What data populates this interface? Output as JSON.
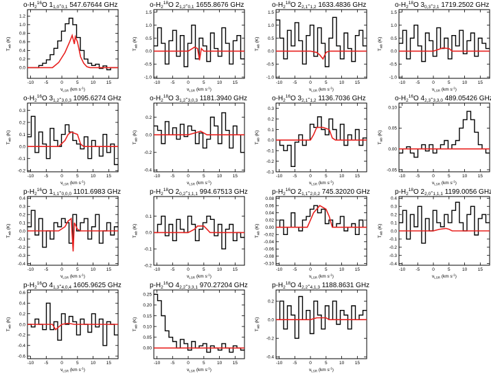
{
  "figure": {
    "background": "#ffffff",
    "frame_color": "#000000",
    "observed_color": "#000000",
    "model_color": "#e8201e"
  },
  "chart_data": [
    {
      "type": "line",
      "species": "o-H",
      "iso": "16",
      "spec": "O 1",
      "up": "1,0",
      "down": "0,1",
      "freq": "547.67644 GHz",
      "xlim": [
        -11,
        18
      ],
      "ylim": [
        -0.25,
        1.35
      ],
      "yticks": [
        0.0,
        0.2,
        0.4,
        0.6,
        0.8,
        1.0,
        1.2
      ],
      "yfmt": 1,
      "obs": [
        0,
        0,
        0,
        0.05,
        0.1,
        0.18,
        0.3,
        0.45,
        0.62,
        0.85,
        1.02,
        1.15,
        1.0,
        0.7,
        0.4,
        0.2,
        0.1,
        0.05,
        0.08,
        -0.02,
        0.04,
        -0.05,
        0,
        0
      ],
      "model": [
        [
          -11,
          0
        ],
        [
          -3,
          0
        ],
        [
          -1,
          0.12
        ],
        [
          1,
          0.35
        ],
        [
          2.5,
          0.6
        ],
        [
          3.3,
          0.75
        ],
        [
          4,
          0.55
        ],
        [
          4.3,
          0.72
        ],
        [
          5,
          0.6
        ],
        [
          6,
          0.25
        ],
        [
          7,
          0.1
        ],
        [
          8,
          0.02
        ],
        [
          9,
          0
        ],
        [
          18,
          0
        ]
      ],
      "xlabel": "v",
      "xsub": "LSR",
      "xunit": " (km s",
      "ylabel": "T",
      "ysub": "mb",
      "yunit": " (K)"
    },
    {
      "type": "line",
      "species": "o-H",
      "iso": "18",
      "spec": "O 2",
      "up": "1,2",
      "down": "0,1",
      "freq": "1655.8676 GHz",
      "xlim": [
        -11,
        18
      ],
      "ylim": [
        -1.05,
        1.6
      ],
      "yticks": [
        -1.0,
        -0.5,
        0.0,
        0.5,
        1.0,
        1.5
      ],
      "yfmt": 1,
      "obs": [
        0.2,
        0.9,
        0.3,
        -0.5,
        0.4,
        0.8,
        -0.2,
        0.6,
        -0.6,
        0.3,
        1.0,
        -0.3,
        0.5,
        0.2,
        -0.4,
        0.7,
        0.1,
        -0.2,
        0.9,
        0.3,
        -0.5,
        0.4,
        0.6,
        -0.3
      ],
      "model": [
        [
          -11,
          0
        ],
        [
          0,
          0
        ],
        [
          2,
          0.15
        ],
        [
          3,
          0.1
        ],
        [
          3.6,
          -0.35
        ],
        [
          4.2,
          0.1
        ],
        [
          5,
          0
        ],
        [
          18,
          0
        ]
      ],
      "xlabel": "v",
      "xsub": "LSR",
      "xunit": " (km s",
      "ylabel": "T",
      "ysub": "mb",
      "yunit": " (K)"
    },
    {
      "type": "line",
      "species": "o-H",
      "iso": "18",
      "spec": "O 2",
      "up": "2,1",
      "down": "1,2",
      "freq": "1633.4836 GHz",
      "xlim": [
        -11,
        18
      ],
      "ylim": [
        -1.05,
        1.6
      ],
      "yticks": [
        -1.0,
        -0.5,
        0.0,
        0.5,
        1.0,
        1.5
      ],
      "yfmt": 1,
      "obs": [
        1.2,
        0.5,
        -0.3,
        0.8,
        0.2,
        1.1,
        0.4,
        -0.5,
        0.6,
        1.0,
        -0.2,
        0.9,
        0.3,
        -0.6,
        0.5,
        1.3,
        0.2,
        -0.3,
        0.7,
        0.1,
        -0.4,
        0.6,
        0.8,
        0.2
      ],
      "model": [
        [
          -11,
          0
        ],
        [
          0,
          0
        ],
        [
          2,
          -0.05
        ],
        [
          3,
          -0.15
        ],
        [
          4,
          -0.3
        ],
        [
          5,
          -0.05
        ],
        [
          6,
          0
        ],
        [
          18,
          0
        ]
      ],
      "xlabel": "v",
      "xsub": "LSR",
      "xunit": " (km s",
      "ylabel": "T",
      "ysub": "mb",
      "yunit": " (K)"
    },
    {
      "type": "line",
      "species": "o-H",
      "iso": "18",
      "spec": "O 3",
      "up": "0,3",
      "down": "2,1",
      "freq": "1719.2502 GHz",
      "xlim": [
        -11,
        18
      ],
      "ylim": [
        -1.05,
        1.6
      ],
      "yticks": [
        -1.0,
        -0.5,
        0.0,
        0.5,
        1.0,
        1.5
      ],
      "yfmt": 1,
      "obs": [
        0.3,
        0.8,
        -0.3,
        0.5,
        1.0,
        0.2,
        -0.4,
        0.7,
        0.4,
        -0.2,
        0.9,
        0.1,
        0.5,
        -0.3,
        0.6,
        0.2,
        0.8,
        -0.1,
        0.4,
        0.7,
        -0.2,
        0.5,
        0.3,
        0.1
      ],
      "model": [
        [
          -11,
          0
        ],
        [
          0,
          0
        ],
        [
          2,
          0.08
        ],
        [
          3,
          0.12
        ],
        [
          5,
          0.1
        ],
        [
          6,
          0
        ],
        [
          18,
          0
        ]
      ],
      "xlabel": "v",
      "xsub": "LSR",
      "xunit": " (km s",
      "ylabel": "T",
      "ysub": "mb",
      "yunit": " (K)"
    },
    {
      "type": "line",
      "species": "o-H",
      "iso": "16",
      "spec": "O 3",
      "up": "1,2",
      "down": "3,0,3",
      "freq": "1095.6274 GHz",
      "xlim": [
        -11,
        18
      ],
      "ylim": [
        -0.21,
        0.36
      ],
      "yticks": [
        -0.2,
        -0.1,
        0.0,
        0.1,
        0.2,
        0.3
      ],
      "yfmt": 1,
      "obs": [
        0.08,
        0.25,
        -0.05,
        0.12,
        0.02,
        -0.1,
        0.15,
        0.05,
        0.0,
        0.1,
        0.18,
        0.12,
        0.05,
        0.02,
        -0.02,
        0.08,
        -0.1,
        0.05,
        0.0,
        -0.08,
        0.1,
        -0.05,
        0.02,
        -0.15
      ],
      "model": [
        [
          -11,
          0
        ],
        [
          -1,
          0
        ],
        [
          1,
          0.05
        ],
        [
          2,
          0.1
        ],
        [
          3,
          0.12
        ],
        [
          5,
          0.1
        ],
        [
          6,
          0.02
        ],
        [
          7,
          0
        ],
        [
          18,
          0
        ]
      ],
      "xlabel": "v",
      "xsub": "LSR",
      "xunit": " (km s",
      "ylabel": "T",
      "ysub": "mb",
      "yunit": " (K)"
    },
    {
      "type": "line",
      "species": "o-H",
      "iso": "18",
      "spec": "O 3",
      "up": "1,2",
      "down": "3,0,3",
      "freq": "1181.3940 GHz",
      "xlim": [
        -11,
        18
      ],
      "ylim": [
        -0.42,
        0.36
      ],
      "yticks": [
        -0.4,
        -0.2,
        0.0,
        0.2
      ],
      "yfmt": 1,
      "obs": [
        0.1,
        0.05,
        -0.1,
        0.15,
        0.0,
        0.08,
        -0.05,
        0.12,
        -0.02,
        0.1,
        0.05,
        -0.1,
        0.02,
        -0.15,
        -0.05,
        0.2,
        0.1,
        -0.1,
        0.25,
        0.05,
        -0.15,
        0.1,
        0.0,
        -0.2
      ],
      "model": [
        [
          -11,
          0
        ],
        [
          0,
          0
        ],
        [
          2,
          0.02
        ],
        [
          4,
          0.04
        ],
        [
          5,
          0.02
        ],
        [
          6,
          0
        ],
        [
          18,
          0
        ]
      ],
      "xlabel": "v",
      "xsub": "LSR",
      "xunit": " (km s",
      "ylabel": "T",
      "ysub": "mb",
      "yunit": " (K)"
    },
    {
      "type": "line",
      "species": "o-H",
      "iso": "16",
      "spec": "O 3",
      "up": "2,1",
      "down": "1,2",
      "freq": "1136.7036 GHz",
      "xlim": [
        -11,
        18
      ],
      "ylim": [
        -0.3,
        0.35
      ],
      "yticks": [
        -0.3,
        -0.2,
        -0.1,
        0.0,
        0.1,
        0.2,
        0.3
      ],
      "yfmt": 1,
      "obs": [
        0.0,
        -0.05,
        -0.1,
        -0.05,
        -0.25,
        -0.02,
        0.05,
        -0.05,
        0.0,
        0.15,
        0.12,
        0.22,
        0.1,
        0.05,
        0.2,
        0.1,
        0.0,
        0.15,
        -0.05,
        0.05,
        0.0,
        0.1,
        -0.05,
        0.02
      ],
      "model": [
        [
          -11,
          0
        ],
        [
          0,
          0
        ],
        [
          1,
          0.05
        ],
        [
          2,
          0.12
        ],
        [
          4,
          0.12
        ],
        [
          6,
          0.1
        ],
        [
          7,
          0.02
        ],
        [
          8,
          0
        ],
        [
          18,
          0
        ]
      ],
      "xlabel": "v",
      "xsub": "LSR",
      "xunit": " (km s",
      "ylabel": "T",
      "ysub": "mb",
      "yunit": " (K)"
    },
    {
      "type": "line",
      "species": "o-H",
      "iso": "16",
      "spec": "O 4",
      "up": "2,3",
      "down": "3,3,0",
      "freq": "489.05426 GHz",
      "xlim": [
        -11,
        18
      ],
      "ylim": [
        -0.055,
        0.11
      ],
      "yticks": [
        -0.05,
        0.0,
        0.05,
        0.1
      ],
      "yfmt": 2,
      "obs": [
        -0.01,
        0.0,
        0.005,
        -0.01,
        -0.02,
        0.0,
        0.01,
        -0.005,
        0.01,
        -0.01,
        0.0,
        0.01,
        0.02,
        0.0,
        0.01,
        0.02,
        0.05,
        0.07,
        0.09,
        0.07,
        0.04,
        0.01,
        0.0,
        -0.01
      ],
      "model": [
        [
          -11,
          0
        ],
        [
          18,
          0
        ]
      ],
      "xlabel": "v",
      "xsub": "LSR",
      "xunit": " (km s",
      "ylabel": "T",
      "ysub": "mb",
      "yunit": " (K)"
    },
    {
      "type": "line",
      "species": "p-H",
      "iso": "16",
      "spec": "O 1",
      "up": "1,1",
      "down": "0,0,0",
      "freq": "1101.6983 GHz",
      "xlim": [
        -11,
        18
      ],
      "ylim": [
        -0.42,
        0.42
      ],
      "yticks": [
        -0.4,
        -0.3,
        -0.2,
        -0.1,
        0.0,
        0.1,
        0.2,
        0.3,
        0.4
      ],
      "yfmt": 1,
      "obs": [
        0.05,
        0.25,
        -0.05,
        0.15,
        -0.2,
        0.0,
        -0.1,
        0.1,
        0.05,
        0.15,
        0.1,
        -0.15,
        0.2,
        0.0,
        0.1,
        0.15,
        -0.1,
        0.05,
        0.2,
        -0.15,
        0.0,
        0.1,
        -0.05,
        0.05
      ],
      "model": [
        [
          -11,
          0
        ],
        [
          -1,
          0
        ],
        [
          1,
          0.05
        ],
        [
          2,
          0.12
        ],
        [
          3,
          0.15
        ],
        [
          3.6,
          -0.25
        ],
        [
          4,
          0.1
        ],
        [
          5,
          0.02
        ],
        [
          6,
          0
        ],
        [
          18,
          0
        ]
      ],
      "xlabel": "v",
      "xsub": "LSR",
      "xunit": " (km s",
      "ylabel": "T",
      "ysub": "mb",
      "yunit": " (K)"
    },
    {
      "type": "line",
      "species": "p-H",
      "iso": "18",
      "spec": "O 2",
      "up": "0,2",
      "down": "1,1,1",
      "freq": "994.67513 GHz",
      "xlim": [
        -11,
        18
      ],
      "ylim": [
        -0.2,
        0.22
      ],
      "yticks": [
        -0.2,
        -0.1,
        0.0,
        0.1
      ],
      "yfmt": 1,
      "obs": [
        0.0,
        0.05,
        0.1,
        -0.02,
        0.05,
        -0.05,
        0.08,
        0.02,
        0.0,
        0.1,
        0.05,
        -0.05,
        0.02,
        0.06,
        0.1,
        0.08,
        -0.02,
        0.05,
        -0.1,
        0.02,
        0.05,
        -0.05,
        0.0,
        -0.03
      ],
      "model": [
        [
          -11,
          0
        ],
        [
          0,
          0
        ],
        [
          2,
          0.02
        ],
        [
          3,
          0.04
        ],
        [
          5,
          0.04
        ],
        [
          6,
          0.02
        ],
        [
          7,
          0
        ],
        [
          18,
          0
        ]
      ],
      "xlabel": "v",
      "xsub": "LSR",
      "xunit": " (km s",
      "ylabel": "T",
      "ysub": "mb",
      "yunit": " (K)"
    },
    {
      "type": "line",
      "species": "p-H",
      "iso": "16",
      "spec": "O 2",
      "up": "1,1",
      "down": "2,0,2",
      "freq": "745.32020 GHz",
      "xlim": [
        -11,
        18
      ],
      "ylim": [
        -0.105,
        0.085
      ],
      "yticks": [
        -0.1,
        -0.08,
        -0.06,
        -0.04,
        -0.02,
        0.0,
        0.02,
        0.04,
        0.06,
        0.08
      ],
      "yfmt": 2,
      "obs": [
        0.0,
        0.02,
        -0.02,
        0.0,
        0.04,
        0.0,
        -0.01,
        0.02,
        0.03,
        0.05,
        0.06,
        0.04,
        0.05,
        0.01,
        0.02,
        0.0,
        0.01,
        0.03,
        -0.01,
        0.0,
        0.01,
        -0.02,
        0.02,
        0.0
      ],
      "model": [
        [
          -11,
          0
        ],
        [
          -1,
          0
        ],
        [
          0,
          0.02
        ],
        [
          1,
          0.04
        ],
        [
          2,
          0.05
        ],
        [
          3,
          0.06
        ],
        [
          5,
          0.05
        ],
        [
          6,
          0.03
        ],
        [
          7,
          0
        ],
        [
          18,
          0
        ]
      ],
      "xlabel": "v",
      "xsub": "LSR",
      "xunit": " (km s",
      "ylabel": "T",
      "ysub": "mb",
      "yunit": " (K)"
    },
    {
      "type": "line",
      "species": "p-H",
      "iso": "18",
      "spec": "O 2",
      "up": "2,0",
      "down": "1,1,1",
      "freq": "1199.0056 GHz",
      "xlim": [
        -11,
        18
      ],
      "ylim": [
        -0.42,
        0.42
      ],
      "yticks": [
        -0.4,
        -0.3,
        -0.2,
        -0.1,
        0.0,
        0.1,
        0.2,
        0.3,
        0.4
      ],
      "yfmt": 1,
      "obs": [
        0.1,
        0.25,
        -0.1,
        0.2,
        0.05,
        0.3,
        -0.15,
        0.15,
        0.0,
        0.25,
        0.1,
        0.05,
        0.2,
        0.1,
        0.25,
        0.35,
        0.1,
        0.0,
        0.2,
        0.3,
        -0.05,
        0.15,
        0.2,
        0.1
      ],
      "model": [
        [
          -11,
          0
        ],
        [
          0,
          0
        ],
        [
          2,
          0.02
        ],
        [
          4,
          0.03
        ],
        [
          5,
          0.02
        ],
        [
          6,
          0
        ],
        [
          18,
          0
        ]
      ],
      "xlabel": "v",
      "xsub": "LSR",
      "xunit": " (km s",
      "ylabel": "T",
      "ysub": "mb",
      "yunit": " (K)"
    },
    {
      "type": "line",
      "species": "p-H",
      "iso": "16",
      "spec": "O 4",
      "up": "1,3",
      "down": "4,0,4",
      "freq": "1605.9625 GHz",
      "xlim": [
        -11,
        18
      ],
      "ylim": [
        -0.65,
        0.65
      ],
      "yticks": [
        -0.6,
        -0.4,
        -0.2,
        0.0,
        0.2,
        0.4,
        0.6
      ],
      "yfmt": 1,
      "obs": [
        0.0,
        -0.05,
        0.1,
        0.0,
        -0.1,
        0.4,
        -0.1,
        0.05,
        -0.3,
        0.2,
        0.0,
        0.15,
        0.05,
        -0.2,
        0.1,
        0.0,
        -0.15,
        0.2,
        -0.05,
        0.1,
        -0.4,
        0.05,
        0.0,
        -0.2
      ],
      "model": [
        [
          -11,
          0
        ],
        [
          -3,
          0
        ],
        [
          -2,
          -0.1
        ],
        [
          -1,
          -0.05
        ],
        [
          0,
          0
        ],
        [
          2,
          0.02
        ],
        [
          4,
          0
        ],
        [
          18,
          0
        ]
      ],
      "xlabel": "v",
      "xsub": "LSR",
      "xunit": " (km s",
      "ylabel": "T",
      "ysub": "mb",
      "yunit": " (K)"
    },
    {
      "type": "line",
      "species": "p-H",
      "iso": "16",
      "spec": "O 4",
      "up": "2,2",
      "down": "3,3,1",
      "freq": "970.27204 GHz",
      "xlim": [
        -11,
        18
      ],
      "ylim": [
        -0.05,
        0.27
      ],
      "yticks": [
        0.0,
        0.05,
        0.1,
        0.15,
        0.2,
        0.25
      ],
      "yfmt": 2,
      "obs": [
        0.25,
        0.22,
        0.15,
        0.08,
        0.05,
        0.03,
        0.0,
        0.04,
        0.02,
        -0.01,
        0.03,
        0.0,
        0.01,
        0.02,
        -0.02,
        0.01,
        0.0,
        -0.01,
        0.02,
        0.0,
        -0.02,
        0.01,
        0.0,
        -0.01
      ],
      "model": [
        [
          -11,
          0
        ],
        [
          18,
          0
        ]
      ],
      "xlabel": "v",
      "xsub": "LSR",
      "xunit": " (km s",
      "ylabel": "T",
      "ysub": "mb",
      "yunit": " (K)"
    },
    {
      "type": "line",
      "species": "p-H",
      "iso": "18",
      "spec": "O 4",
      "up": "2,2",
      "down": "4,1,3",
      "freq": "1188.8631 GHz",
      "xlim": [
        -11,
        18
      ],
      "ylim": [
        -0.42,
        0.32
      ],
      "yticks": [
        -0.4,
        -0.2,
        0.0,
        0.2
      ],
      "yfmt": 1,
      "obs": [
        0.0,
        0.2,
        -0.1,
        0.15,
        0.05,
        -0.2,
        0.25,
        0.0,
        0.1,
        -0.15,
        0.2,
        0.05,
        -0.1,
        0.15,
        0.0,
        0.2,
        -0.05,
        0.1,
        0.05,
        -0.1,
        0.15,
        0.0,
        0.05,
        0.1
      ],
      "model": [
        [
          -11,
          0
        ],
        [
          0,
          0
        ],
        [
          2,
          0.02
        ],
        [
          5,
          0.02
        ],
        [
          6,
          0
        ],
        [
          18,
          0
        ]
      ],
      "xlabel": "v",
      "xsub": "LSR",
      "xunit": " (km s",
      "ylabel": "T",
      "ysub": "mb",
      "yunit": " (K)"
    }
  ]
}
